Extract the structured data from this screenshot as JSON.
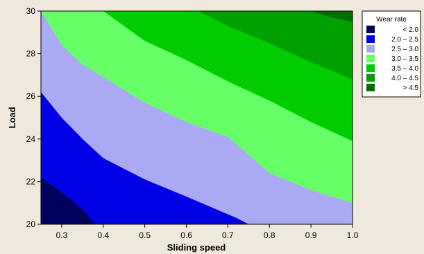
{
  "chart_data": {
    "type": "contour",
    "title": "",
    "xlabel": "Sliding speed",
    "ylabel": "Load",
    "xlim": [
      0.25,
      1.0
    ],
    "ylim": [
      20,
      30
    ],
    "x_ticks": [
      0.3,
      0.4,
      0.5,
      0.6,
      0.7,
      0.8,
      0.9,
      1.0
    ],
    "x_tick_labels": [
      "0.3",
      "0.4",
      "0.5",
      "0.6",
      "0.7",
      "0.8",
      "0.9",
      "1.0"
    ],
    "y_ticks": [
      20,
      22,
      24,
      26,
      28,
      30
    ],
    "y_tick_labels": [
      "20",
      "22",
      "24",
      "26",
      "28",
      "30"
    ],
    "legend_position": "top-right",
    "legend": {
      "title": "Wear rate",
      "entries": [
        {
          "label": "<   2.0",
          "color": "#00005e"
        },
        {
          "label": "2.0  –  2.5",
          "color": "#0000e6"
        },
        {
          "label": "2.5  –  3.0",
          "color": "#aaaaf4"
        },
        {
          "label": "3.0  –  3.5",
          "color": "#66ff66"
        },
        {
          "label": "3.5  –  4.0",
          "color": "#00cc00"
        },
        {
          "label": "4.0  –  4.5",
          "color": "#00a000"
        },
        {
          "label": ">   4.5",
          "color": "#006e00"
        }
      ]
    },
    "levels": [
      2.0,
      2.5,
      3.0,
      3.5,
      4.0,
      4.5
    ],
    "contour_lines": [
      {
        "level": 2.0,
        "points": [
          [
            0.25,
            22.2
          ],
          [
            0.3,
            21.5
          ],
          [
            0.35,
            20.7
          ],
          [
            0.38,
            20.0
          ]
        ]
      },
      {
        "level": 2.5,
        "points": [
          [
            0.25,
            26.2
          ],
          [
            0.3,
            25.0
          ],
          [
            0.35,
            24.0
          ],
          [
            0.4,
            23.1
          ],
          [
            0.45,
            22.6
          ],
          [
            0.5,
            22.1
          ],
          [
            0.6,
            21.3
          ],
          [
            0.72,
            20.3
          ],
          [
            0.75,
            20.0
          ]
        ]
      },
      {
        "level": 3.0,
        "points": [
          [
            0.25,
            30.0
          ],
          [
            0.3,
            28.4
          ],
          [
            0.35,
            27.5
          ],
          [
            0.4,
            26.9
          ],
          [
            0.5,
            25.7
          ],
          [
            0.6,
            24.8
          ],
          [
            0.7,
            24.1
          ],
          [
            0.8,
            22.4
          ],
          [
            0.9,
            21.6
          ],
          [
            1.0,
            21.0
          ]
        ]
      },
      {
        "level": 3.5,
        "points": [
          [
            0.4,
            30.0
          ],
          [
            0.5,
            28.6
          ],
          [
            0.6,
            27.7
          ],
          [
            0.7,
            26.7
          ],
          [
            0.8,
            25.8
          ],
          [
            0.9,
            24.8
          ],
          [
            1.0,
            23.9
          ]
        ]
      },
      {
        "level": 4.0,
        "points": [
          [
            0.63,
            30.0
          ],
          [
            0.7,
            29.3
          ],
          [
            0.8,
            28.5
          ],
          [
            0.9,
            27.6
          ],
          [
            1.0,
            26.8
          ]
        ]
      },
      {
        "level": 4.5,
        "points": [
          [
            0.9,
            30.0
          ],
          [
            0.95,
            29.7
          ],
          [
            1.0,
            29.5
          ]
        ]
      }
    ]
  }
}
